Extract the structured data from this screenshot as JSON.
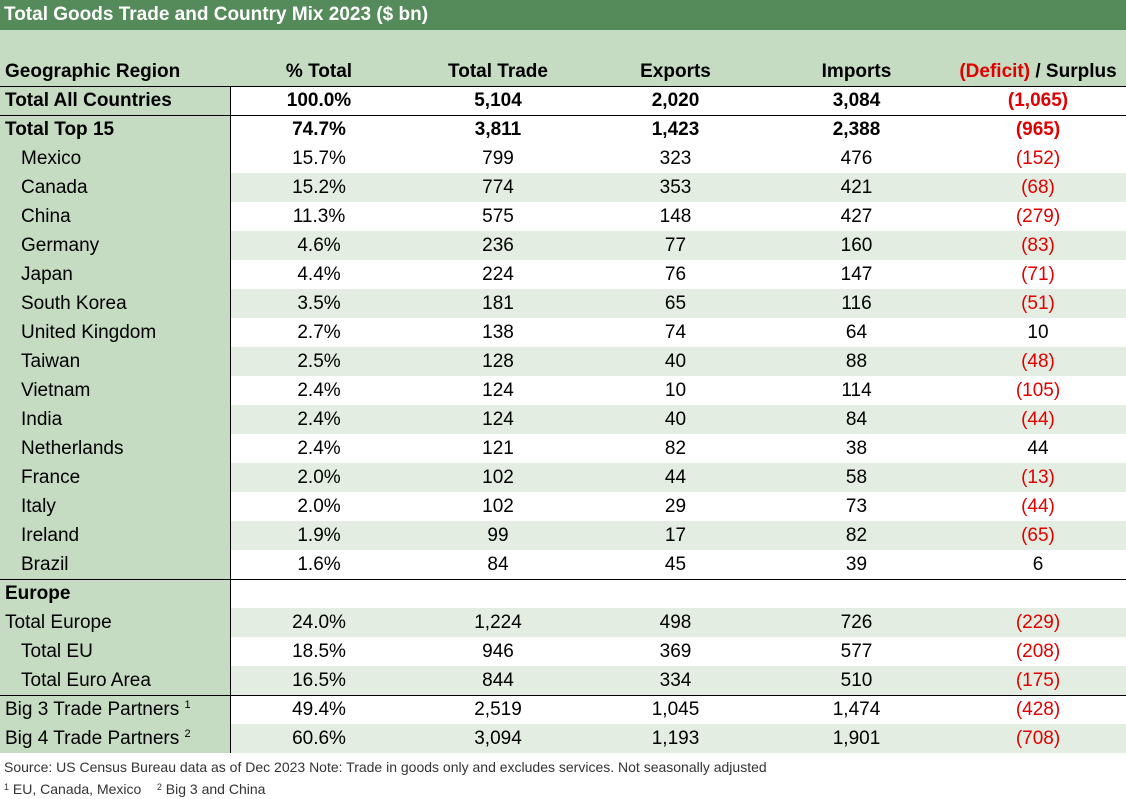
{
  "title": "Total Goods Trade and Country Mix 2023 ($ bn)",
  "headers": {
    "region": "Geographic Region",
    "pct": "% Total",
    "total": "Total Trade",
    "exports": "Exports",
    "imports": "Imports",
    "deficit": "(Deficit)",
    "surplus": " / Surplus"
  },
  "rows": [
    {
      "name": "Total All Countries",
      "pct": "100.0%",
      "total": "5,104",
      "exports": "2,020",
      "imports": "3,084",
      "bal": "(1,065)"
    },
    {
      "name": "Total Top 15",
      "pct": "74.7%",
      "total": "3,811",
      "exports": "1,423",
      "imports": "2,388",
      "bal": "(965)"
    },
    {
      "name": "Mexico",
      "pct": "15.7%",
      "total": "799",
      "exports": "323",
      "imports": "476",
      "bal": "(152)"
    },
    {
      "name": "Canada",
      "pct": "15.2%",
      "total": "774",
      "exports": "353",
      "imports": "421",
      "bal": "(68)"
    },
    {
      "name": "China",
      "pct": "11.3%",
      "total": "575",
      "exports": "148",
      "imports": "427",
      "bal": "(279)"
    },
    {
      "name": "Germany",
      "pct": "4.6%",
      "total": "236",
      "exports": "77",
      "imports": "160",
      "bal": "(83)"
    },
    {
      "name": "Japan",
      "pct": "4.4%",
      "total": "224",
      "exports": "76",
      "imports": "147",
      "bal": "(71)"
    },
    {
      "name": "South Korea",
      "pct": "3.5%",
      "total": "181",
      "exports": "65",
      "imports": "116",
      "bal": "(51)"
    },
    {
      "name": "United Kingdom",
      "pct": "2.7%",
      "total": "138",
      "exports": "74",
      "imports": "64",
      "bal": "10"
    },
    {
      "name": "Taiwan",
      "pct": "2.5%",
      "total": "128",
      "exports": "40",
      "imports": "88",
      "bal": "(48)"
    },
    {
      "name": "Vietnam",
      "pct": "2.4%",
      "total": "124",
      "exports": "10",
      "imports": "114",
      "bal": "(105)"
    },
    {
      "name": "India",
      "pct": "2.4%",
      "total": "124",
      "exports": "40",
      "imports": "84",
      "bal": "(44)"
    },
    {
      "name": "Netherlands",
      "pct": "2.4%",
      "total": "121",
      "exports": "82",
      "imports": "38",
      "bal": "44"
    },
    {
      "name": "France",
      "pct": "2.0%",
      "total": "102",
      "exports": "44",
      "imports": "58",
      "bal": "(13)"
    },
    {
      "name": "Italy",
      "pct": "2.0%",
      "total": "102",
      "exports": "29",
      "imports": "73",
      "bal": "(44)"
    },
    {
      "name": "Ireland",
      "pct": "1.9%",
      "total": "99",
      "exports": "17",
      "imports": "82",
      "bal": "(65)"
    },
    {
      "name": "Brazil",
      "pct": "1.6%",
      "total": "84",
      "exports": "45",
      "imports": "39",
      "bal": "6"
    },
    {
      "name": "Europe",
      "pct": "",
      "total": "",
      "exports": "",
      "imports": "",
      "bal": ""
    },
    {
      "name": "Total Europe",
      "pct": "24.0%",
      "total": "1,224",
      "exports": "498",
      "imports": "726",
      "bal": "(229)"
    },
    {
      "name": "Total EU",
      "pct": "18.5%",
      "total": "946",
      "exports": "369",
      "imports": "577",
      "bal": "(208)"
    },
    {
      "name": "Total Euro Area",
      "pct": "16.5%",
      "total": "844",
      "exports": "334",
      "imports": "510",
      "bal": "(175)"
    },
    {
      "name": "Big 3 Trade Partners",
      "sup": "1",
      "pct": "49.4%",
      "total": "2,519",
      "exports": "1,045",
      "imports": "1,474",
      "bal": "(428)"
    },
    {
      "name": "Big 4 Trade Partners",
      "sup": "2",
      "pct": "60.6%",
      "total": "3,094",
      "exports": "1,193",
      "imports": "1,901",
      "bal": "(708)"
    }
  ],
  "source_note": "Source: US Census Bureau data as of Dec 2023 Note: Trade in goods only and excludes services. Not seasonally adjusted",
  "footnote1_mark": "1",
  "footnote1": "EU, Canada, Mexico",
  "footnote2_mark": "2",
  "footnote2": "Big 3 and China",
  "colors": {
    "title_bg": "#558a5a",
    "label_bg": "#c5dbc2",
    "alt_row": "#e3ede1",
    "negative": "#e00000"
  }
}
